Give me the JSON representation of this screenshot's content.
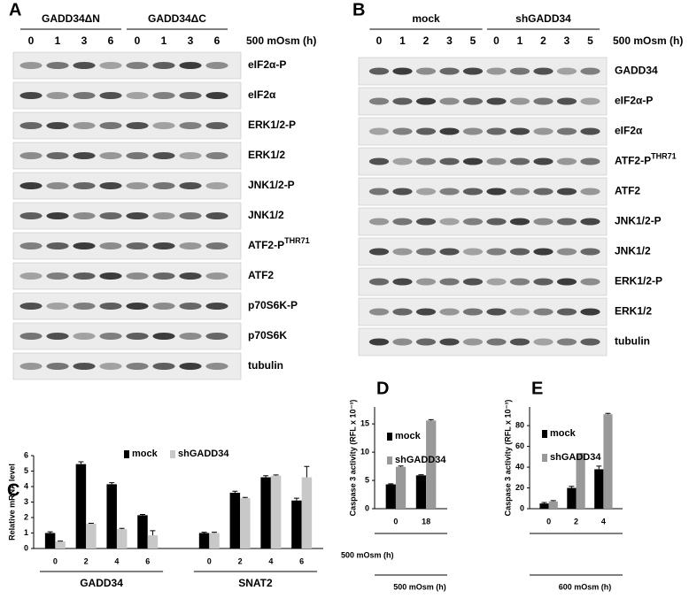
{
  "panels": {
    "a": {
      "letter": "A",
      "groups": [
        "GADD34ΔN",
        "GADD34ΔC"
      ],
      "lanes": [
        "0",
        "1",
        "3",
        "6",
        "0",
        "1",
        "3",
        "6"
      ],
      "condition": "500 mOsm (h)",
      "rows": [
        {
          "text": "eIF2α-P"
        },
        {
          "text": "eIF2α"
        },
        {
          "text": "ERK1/2-P"
        },
        {
          "text": "ERK1/2"
        },
        {
          "text": "JNK1/2-P"
        },
        {
          "text": "JNK1/2"
        },
        {
          "text": "ATF2-P",
          "sup": "THR71"
        },
        {
          "text": "ATF2"
        },
        {
          "text": "p70S6K-P"
        },
        {
          "text": "p70S6K"
        },
        {
          "text": "tubulin"
        }
      ]
    },
    "b": {
      "letter": "B",
      "groups": [
        "mock",
        "shGADD34"
      ],
      "lanes": [
        "0",
        "1",
        "2",
        "3",
        "5",
        "0",
        "1",
        "2",
        "3",
        "5"
      ],
      "condition": "500 mOsm (h)",
      "rows": [
        {
          "text": "GADD34"
        },
        {
          "text": "eIF2α-P"
        },
        {
          "text": "eIF2α"
        },
        {
          "text": "ATF2-P",
          "sup": "THR71"
        },
        {
          "text": "ATF2"
        },
        {
          "text": "JNK1/2-P"
        },
        {
          "text": "JNK1/2"
        },
        {
          "text": "ERK1/2-P"
        },
        {
          "text": "ERK1/2"
        },
        {
          "text": "tubulin"
        }
      ]
    }
  },
  "chart_data": [
    {
      "type": "bar",
      "letter": "C",
      "ylabel": "Relative mRNA level",
      "xlabel": "500 mOsm (h)",
      "categories": [
        "0",
        "2",
        "4",
        "6",
        "0",
        "2",
        "4",
        "6"
      ],
      "groups": [
        "GADD34",
        "SNAT2"
      ],
      "series": [
        {
          "name": "mock",
          "color": "#000000",
          "values": [
            1.0,
            5.45,
            4.15,
            2.15,
            1.0,
            3.6,
            4.6,
            3.1
          ],
          "errors": [
            0.08,
            0.15,
            0.1,
            0.05,
            0.05,
            0.1,
            0.1,
            0.15
          ]
        },
        {
          "name": "shGADD34",
          "color": "#c8c8c8",
          "values": [
            0.45,
            1.6,
            1.25,
            0.85,
            1.0,
            3.25,
            4.7,
            4.6
          ],
          "errors": [
            0.03,
            0.03,
            0.05,
            0.3,
            0.05,
            0.05,
            0.05,
            0.7
          ]
        }
      ],
      "ylim": [
        0,
        6
      ],
      "yticks": [
        0,
        1,
        2,
        3,
        4,
        5,
        6
      ],
      "legend": "top"
    },
    {
      "type": "bar",
      "letter": "D",
      "ylabel": "Caspase 3 activity (RFL x 10⁻³)",
      "xlabel": "500 mOsm (h)",
      "categories": [
        "0",
        "18"
      ],
      "series": [
        {
          "name": "mock",
          "color": "#000000",
          "values": [
            4.3,
            5.9
          ],
          "errors": [
            0.1,
            0.1
          ]
        },
        {
          "name": "shGADD34",
          "color": "#999999",
          "values": [
            7.4,
            15.6
          ],
          "errors": [
            0.15,
            0.15
          ]
        }
      ],
      "ylim": [
        0,
        18
      ],
      "yticks": [
        0,
        5,
        10,
        15
      ],
      "legend": "upper left"
    },
    {
      "type": "bar",
      "letter": "E",
      "ylabel": "Caspase 3 activity (RFL x 10⁻³)",
      "xlabel": "600 mOsm (h)",
      "categories": [
        "0",
        "2",
        "4"
      ],
      "series": [
        {
          "name": "mock",
          "color": "#000000",
          "values": [
            5,
            20,
            38
          ],
          "errors": [
            1,
            1.5,
            3
          ]
        },
        {
          "name": "shGADD34",
          "color": "#999999",
          "values": [
            7,
            52,
            91
          ],
          "errors": [
            0.8,
            0.8,
            0.8
          ]
        }
      ],
      "ylim": [
        0,
        98
      ],
      "yticks": [
        0,
        20,
        40,
        60,
        80
      ],
      "legend": "upper left"
    }
  ]
}
